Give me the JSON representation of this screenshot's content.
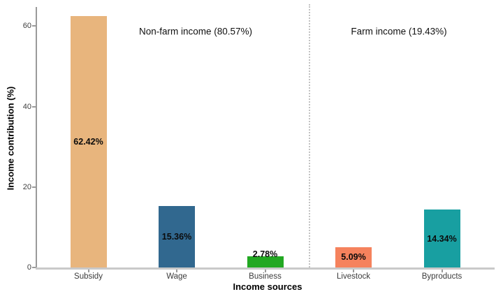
{
  "chart_data": {
    "type": "bar",
    "title": "",
    "xlabel": "Income sources",
    "ylabel": "Income contribution (%)",
    "ylim": [
      0,
      65
    ],
    "yticks": [
      0,
      20,
      40,
      60
    ],
    "grid": false,
    "legend": "none",
    "background": "#ffffff",
    "categories": [
      "Subsidy",
      "Wage",
      "Business",
      "Livestock",
      "Byproducts"
    ],
    "values": [
      62.42,
      15.36,
      2.78,
      5.09,
      14.34
    ],
    "bar_labels": [
      "62.42%",
      "15.36%",
      "2.78%",
      "5.09%",
      "14.34%"
    ],
    "bar_colors": [
      "#e8b57d",
      "#31688f",
      "#22a822",
      "#f5825d",
      "#189fa1"
    ],
    "groups": [
      {
        "label": "Non-farm income (80.57%)",
        "members": [
          "Subsidy",
          "Wage",
          "Business"
        ]
      },
      {
        "label": "Farm income (19.43%)",
        "members": [
          "Livestock",
          "Byproducts"
        ]
      }
    ],
    "divider": {
      "style": "dotted",
      "between": [
        "Business",
        "Livestock"
      ],
      "color": "#c2c2c2"
    },
    "axis_colors": {
      "y_axis_line": "#9a9a9a",
      "x_axis_line": "#c9c9c9",
      "tick_text": "#3f3f3f",
      "label_text": "#000000"
    }
  }
}
